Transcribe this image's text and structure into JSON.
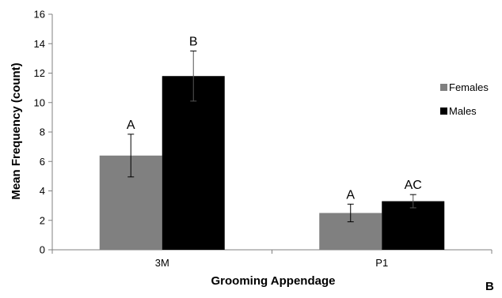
{
  "chart_data": {
    "type": "bar",
    "categories": [
      "3M",
      "P1"
    ],
    "series": [
      {
        "name": "Females",
        "color": "#808080",
        "values": [
          6.4,
          2.5
        ],
        "errors": [
          1.45,
          0.6
        ],
        "letters": [
          "A",
          "A"
        ]
      },
      {
        "name": "Males",
        "color": "#000000",
        "values": [
          11.8,
          3.3
        ],
        "errors": [
          1.7,
          0.45
        ],
        "letters": [
          "B",
          "AC"
        ]
      }
    ],
    "xlabel": "Grooming Appendage",
    "ylabel": "Mean Frequency (count)",
    "ylim": [
      0,
      16
    ],
    "yticks": [
      "0",
      "2",
      "4",
      "6",
      "8",
      "10",
      "12",
      "14",
      "16"
    ],
    "grid": false,
    "legend_position": "right",
    "panel_label": "B"
  }
}
